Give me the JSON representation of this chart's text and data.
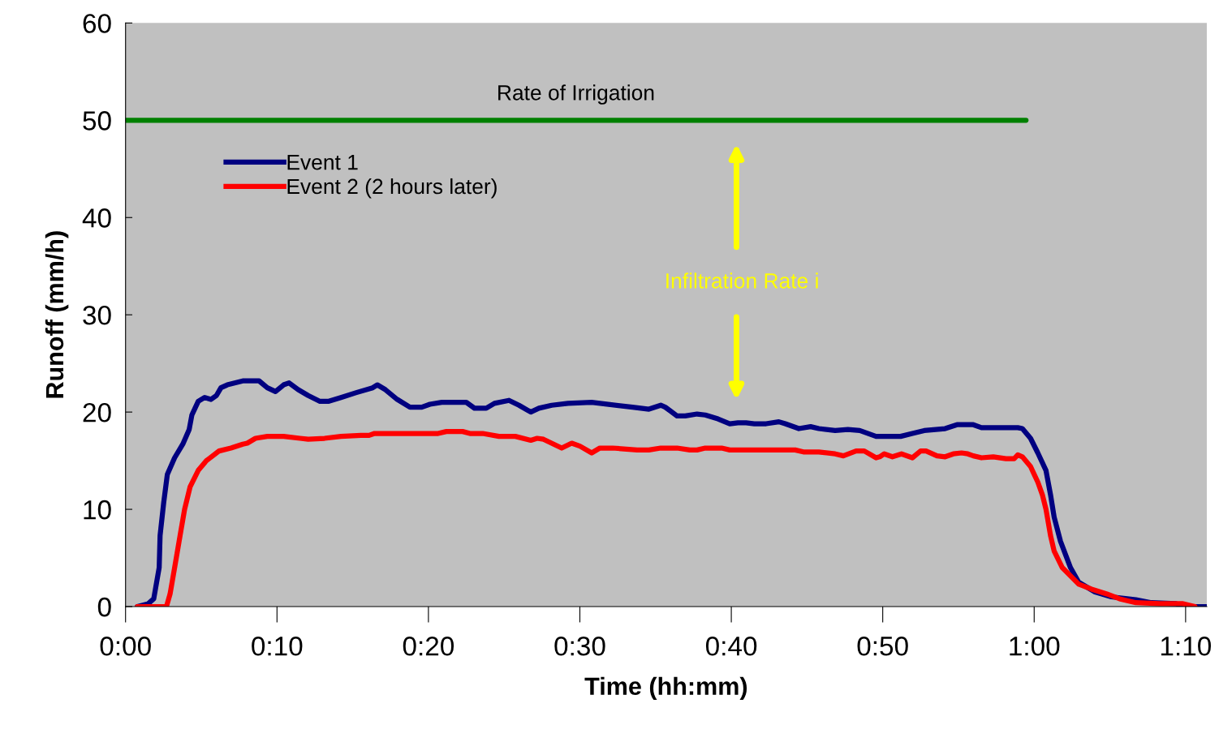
{
  "chart_data": {
    "type": "line",
    "xlabel": "Time (hh:mm)",
    "ylabel": "Runoff (mm/h)",
    "xlim": [
      0,
      1.19
    ],
    "ylim": [
      0,
      60
    ],
    "xticks": [
      {
        "value": 0,
        "label": "0:00"
      },
      {
        "value": 0.16667,
        "label": "0:10"
      },
      {
        "value": 0.33333,
        "label": "0:20"
      },
      {
        "value": 0.5,
        "label": "0:30"
      },
      {
        "value": 0.66667,
        "label": "0:40"
      },
      {
        "value": 0.83333,
        "label": "0:50"
      },
      {
        "value": 1,
        "label": "1:00"
      },
      {
        "value": 1.16667,
        "label": "1:10"
      }
    ],
    "yticks": [
      0,
      10,
      20,
      30,
      40,
      50,
      60
    ],
    "grid": false,
    "legend": "top left",
    "marker": "none",
    "line_style": "solid",
    "annotations": [
      "Infiltration Rate i"
    ],
    "series": [
      {
        "name": "Rate of Irrigation",
        "color": "#008000",
        "x": [
          0,
          0.991
        ],
        "values": [
          50,
          50
        ]
      },
      {
        "name": "Event 1",
        "color": "#000080",
        "x": [
          0.013,
          0.025,
          0.031,
          0.037,
          0.038,
          0.042,
          0.046,
          0.054,
          0.063,
          0.07,
          0.073,
          0.08,
          0.087,
          0.094,
          0.1,
          0.105,
          0.112,
          0.129,
          0.147,
          0.156,
          0.165,
          0.174,
          0.18,
          0.19,
          0.201,
          0.214,
          0.223,
          0.237,
          0.254,
          0.272,
          0.277,
          0.286,
          0.299,
          0.313,
          0.326,
          0.335,
          0.348,
          0.375,
          0.384,
          0.397,
          0.406,
          0.422,
          0.433,
          0.446,
          0.455,
          0.469,
          0.487,
          0.513,
          0.558,
          0.576,
          0.589,
          0.594,
          0.607,
          0.616,
          0.629,
          0.638,
          0.652,
          0.665,
          0.674,
          0.683,
          0.692,
          0.705,
          0.719,
          0.726,
          0.741,
          0.754,
          0.763,
          0.781,
          0.795,
          0.808,
          0.826,
          0.853,
          0.866,
          0.879,
          0.902,
          0.915,
          0.933,
          0.942,
          0.982,
          0.987,
          0.996,
          1.004,
          1.013,
          1.018,
          1.022,
          1.029,
          1.04,
          1.049,
          1.067,
          1.085,
          1.112,
          1.129,
          1.156,
          1.165,
          1.189
        ],
        "values": [
          0,
          0.3,
          0.8,
          4.0,
          7.3,
          10.7,
          13.6,
          15.3,
          16.7,
          18.2,
          19.7,
          21.1,
          21.5,
          21.3,
          21.7,
          22.5,
          22.8,
          23.2,
          23.2,
          22.5,
          22.1,
          22.8,
          23.0,
          22.3,
          21.7,
          21.1,
          21.1,
          21.5,
          22.0,
          22.5,
          22.8,
          22.3,
          21.3,
          20.5,
          20.5,
          20.8,
          21.0,
          21.0,
          20.4,
          20.4,
          20.9,
          21.2,
          20.7,
          20.0,
          20.4,
          20.7,
          20.9,
          21.0,
          20.5,
          20.3,
          20.7,
          20.5,
          19.6,
          19.6,
          19.8,
          19.7,
          19.3,
          18.8,
          18.9,
          18.9,
          18.8,
          18.8,
          19.0,
          18.8,
          18.3,
          18.5,
          18.3,
          18.1,
          18.2,
          18.1,
          17.5,
          17.5,
          17.8,
          18.1,
          18.3,
          18.7,
          18.7,
          18.4,
          18.4,
          18.3,
          17.3,
          15.8,
          14.0,
          11.5,
          9.2,
          6.7,
          4.0,
          2.5,
          1.5,
          1.0,
          0.7,
          0.4,
          0.3,
          0,
          0
        ]
      },
      {
        "name": "Event 2 (2 hours later)",
        "color": "#ff0000",
        "x": [
          0.013,
          0.045,
          0.049,
          0.054,
          0.06,
          0.065,
          0.071,
          0.08,
          0.089,
          0.103,
          0.116,
          0.129,
          0.134,
          0.143,
          0.156,
          0.174,
          0.192,
          0.201,
          0.219,
          0.237,
          0.259,
          0.268,
          0.274,
          0.326,
          0.344,
          0.353,
          0.371,
          0.379,
          0.393,
          0.411,
          0.429,
          0.446,
          0.453,
          0.46,
          0.48,
          0.491,
          0.5,
          0.513,
          0.522,
          0.536,
          0.563,
          0.576,
          0.589,
          0.607,
          0.621,
          0.629,
          0.638,
          0.656,
          0.665,
          0.737,
          0.746,
          0.763,
          0.781,
          0.79,
          0.804,
          0.813,
          0.826,
          0.83,
          0.835,
          0.844,
          0.854,
          0.866,
          0.875,
          0.881,
          0.893,
          0.902,
          0.911,
          0.92,
          0.927,
          0.933,
          0.942,
          0.955,
          0.969,
          0.978,
          0.982,
          0.987,
          0.996,
          1.004,
          1.009,
          1.013,
          1.018,
          1.022,
          1.031,
          1.049,
          1.063,
          1.08,
          1.094,
          1.112,
          1.138,
          1.163,
          1.177
        ],
        "values": [
          0,
          0,
          1.3,
          4.0,
          7.3,
          10.0,
          12.3,
          14.0,
          15.0,
          16.0,
          16.3,
          16.7,
          16.8,
          17.3,
          17.5,
          17.5,
          17.3,
          17.2,
          17.3,
          17.5,
          17.6,
          17.6,
          17.8,
          17.8,
          17.8,
          18.0,
          18.0,
          17.8,
          17.8,
          17.5,
          17.5,
          17.1,
          17.3,
          17.2,
          16.3,
          16.8,
          16.5,
          15.8,
          16.3,
          16.3,
          16.1,
          16.1,
          16.3,
          16.3,
          16.1,
          16.1,
          16.3,
          16.3,
          16.1,
          16.1,
          15.9,
          15.9,
          15.7,
          15.5,
          16.0,
          16.0,
          15.3,
          15.4,
          15.7,
          15.4,
          15.7,
          15.3,
          16.0,
          16.0,
          15.5,
          15.4,
          15.7,
          15.8,
          15.7,
          15.5,
          15.3,
          15.4,
          15.2,
          15.2,
          15.6,
          15.4,
          14.4,
          12.8,
          11.5,
          10.0,
          7.3,
          5.7,
          4.0,
          2.3,
          1.8,
          1.3,
          0.8,
          0.4,
          0.3,
          0.3,
          0
        ]
      }
    ]
  }
}
